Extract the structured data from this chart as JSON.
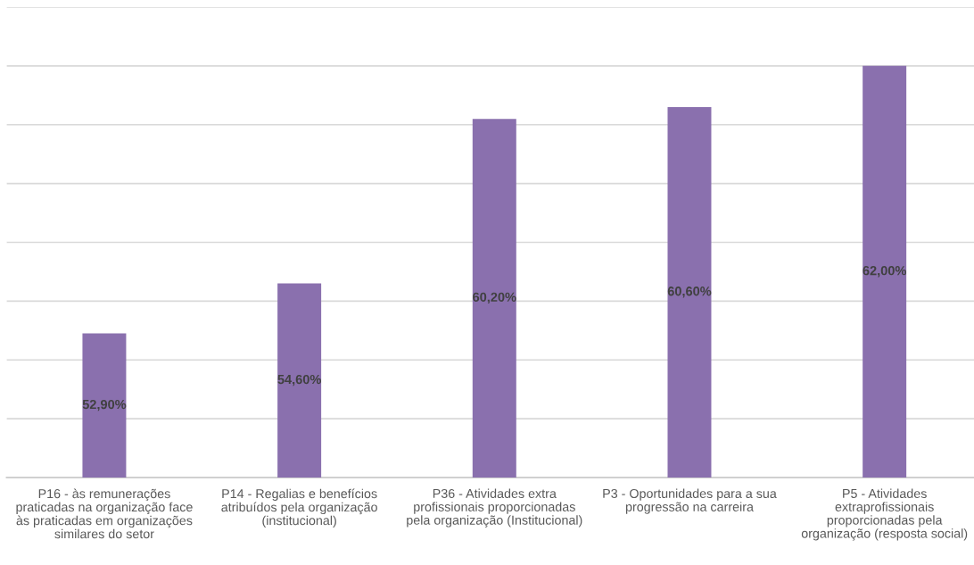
{
  "chart_data": {
    "type": "bar",
    "categories": [
      "P16 - às remunerações\npraticadas na organização face\nàs praticadas em organizações\nsimilares do setor",
      "P14 - Regalias e benefícios\natribuídos pela organização\n(institucional)",
      "P36 - Atividades extra\nprofissionais proporcionadas\npela organização (Institucional)",
      "P3 - Oportunidades para a sua\nprogressão na carreira",
      "P5 - Atividades\nextraprofissionais\nproporcionadas pela\norganização (resposta social)"
    ],
    "values": [
      52.9,
      54.6,
      60.2,
      60.6,
      62.0
    ],
    "value_labels": [
      "52,90%",
      "54,60%",
      "60,20%",
      "60,60%",
      "62,00%"
    ],
    "color": "#8a70ae",
    "ylim": [
      48,
      64
    ],
    "yticks": [
      {
        "value": 48,
        "label": null
      },
      {
        "value": 50,
        "label": null
      },
      {
        "value": 52,
        "label": null
      },
      {
        "value": 54,
        "label": null
      },
      {
        "value": 56,
        "label": null
      },
      {
        "value": 58,
        "label": null
      },
      {
        "value": 60,
        "label": null
      },
      {
        "value": 62,
        "label": null
      },
      {
        "value": 64,
        "label": null
      }
    ],
    "tick_labels": "x",
    "grid": "y",
    "legend": false
  }
}
